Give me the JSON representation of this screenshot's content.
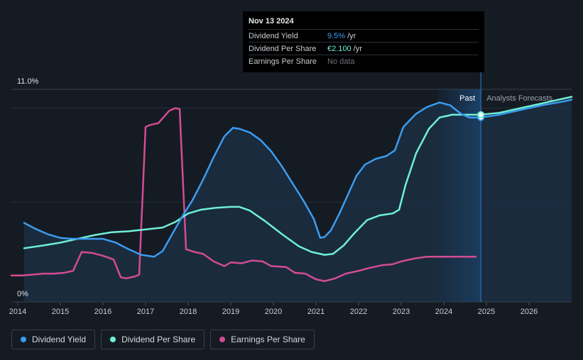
{
  "tooltip": {
    "date": "Nov 13 2024",
    "rows": [
      {
        "label": "Dividend Yield",
        "value": "9.5%",
        "unit": "/yr",
        "color": "#3b9cf0"
      },
      {
        "label": "Dividend Per Share",
        "value": "€2.100",
        "unit": "/yr",
        "color": "#6ff0d8"
      },
      {
        "label": "Earnings Per Share",
        "value": "No data",
        "unit": "",
        "color": "#6e737a"
      }
    ]
  },
  "regions": {
    "past": "Past",
    "forecast": "Analysts Forecasts"
  },
  "legend": [
    {
      "label": "Dividend Yield",
      "color": "#3b9cf0"
    },
    {
      "label": "Dividend Per Share",
      "color": "#6ff0d8"
    },
    {
      "label": "Earnings Per Share",
      "color": "#d34c93"
    }
  ],
  "chart_data": {
    "type": "line",
    "title": "",
    "xlabel": "",
    "ylabel": "",
    "ylim": [
      0,
      11.0
    ],
    "y_tick_labels": [
      "11.0%",
      "0%"
    ],
    "xlim": [
      2013.85,
      2027.0
    ],
    "x_ticks": [
      "2014",
      "2015",
      "2016",
      "2017",
      "2018",
      "2019",
      "2020",
      "2021",
      "2022",
      "2023",
      "2024",
      "2025",
      "2026"
    ],
    "current_date": 2024.87,
    "series": [
      {
        "name": "Dividend Yield",
        "unit": "%",
        "color": "#3b9cf0",
        "x": [
          2014.15,
          2014.4,
          2014.7,
          2015.0,
          2015.3,
          2015.7,
          2016.0,
          2016.3,
          2016.6,
          2016.9,
          2017.2,
          2017.4,
          2017.6,
          2017.85,
          2018.1,
          2018.35,
          2018.6,
          2018.85,
          2019.05,
          2019.2,
          2019.45,
          2019.7,
          2019.95,
          2020.2,
          2020.45,
          2020.7,
          2020.95,
          2021.1,
          2021.2,
          2021.35,
          2021.55,
          2021.75,
          2021.95,
          2022.15,
          2022.4,
          2022.65,
          2022.85,
          2023.05,
          2023.35,
          2023.6,
          2023.9,
          2024.15,
          2024.4,
          2024.6,
          2024.87,
          2025.3,
          2025.8,
          2026.3,
          2026.8,
          2027.0
        ],
        "values": [
          3.9,
          3.6,
          3.3,
          3.1,
          3.05,
          3.05,
          3.05,
          2.85,
          2.5,
          2.2,
          2.1,
          2.4,
          3.2,
          4.2,
          5.1,
          6.2,
          7.4,
          8.5,
          8.95,
          8.9,
          8.7,
          8.3,
          7.7,
          6.9,
          6.0,
          5.1,
          4.1,
          3.1,
          3.15,
          3.5,
          4.4,
          5.4,
          6.4,
          7.0,
          7.3,
          7.45,
          7.75,
          9.0,
          9.7,
          10.05,
          10.3,
          10.15,
          9.7,
          9.5,
          9.5,
          9.65,
          9.9,
          10.15,
          10.35,
          10.45
        ]
      },
      {
        "name": "Dividend Per Share",
        "unit": "€",
        "color": "#6ff0d8",
        "x": [
          2014.15,
          2014.6,
          2015.0,
          2015.4,
          2015.8,
          2016.2,
          2016.6,
          2017.0,
          2017.4,
          2017.7,
          2018.0,
          2018.3,
          2018.65,
          2019.0,
          2019.2,
          2019.45,
          2019.8,
          2020.2,
          2020.6,
          2020.9,
          2021.2,
          2021.4,
          2021.65,
          2021.9,
          2022.2,
          2022.5,
          2022.8,
          2022.95,
          2023.1,
          2023.35,
          2023.65,
          2023.9,
          2024.2,
          2024.55,
          2024.87,
          2025.3,
          2025.8,
          2026.3,
          2026.8,
          2027.0
        ],
        "values": [
          2.55,
          2.7,
          2.85,
          3.05,
          3.25,
          3.4,
          3.45,
          3.55,
          3.65,
          3.95,
          4.4,
          4.6,
          4.7,
          4.75,
          4.75,
          4.55,
          4.0,
          3.3,
          2.65,
          2.35,
          2.2,
          2.25,
          2.7,
          3.35,
          4.05,
          4.3,
          4.4,
          4.6,
          5.9,
          7.6,
          8.9,
          9.5,
          9.65,
          9.65,
          9.65,
          9.75,
          10.0,
          10.25,
          10.5,
          10.6
        ]
      },
      {
        "name": "Earnings Per Share",
        "unit": "",
        "color": "#d34c93",
        "x": [
          2013.85,
          2014.1,
          2014.35,
          2014.6,
          2014.85,
          2015.1,
          2015.3,
          2015.5,
          2015.75,
          2016.0,
          2016.25,
          2016.42,
          2016.55,
          2016.75,
          2016.85,
          2017.0,
          2017.1,
          2017.3,
          2017.55,
          2017.7,
          2017.8,
          2017.95,
          2018.15,
          2018.35,
          2018.6,
          2018.85,
          2019.0,
          2019.25,
          2019.5,
          2019.75,
          2019.95,
          2020.3,
          2020.5,
          2020.75,
          2021.0,
          2021.2,
          2021.45,
          2021.7,
          2022.0,
          2022.25,
          2022.55,
          2022.8,
          2023.0,
          2023.3,
          2023.6,
          2024.0,
          2024.4,
          2024.75
        ],
        "values": [
          1.1,
          1.1,
          1.15,
          1.2,
          1.2,
          1.25,
          1.35,
          2.35,
          2.3,
          2.15,
          1.95,
          1.0,
          0.95,
          1.05,
          1.15,
          9.0,
          9.1,
          9.2,
          9.85,
          10.0,
          9.95,
          2.5,
          2.35,
          2.25,
          1.85,
          1.6,
          1.8,
          1.75,
          1.9,
          1.85,
          1.6,
          1.55,
          1.25,
          1.2,
          0.9,
          0.8,
          0.95,
          1.2,
          1.35,
          1.5,
          1.65,
          1.7,
          1.85,
          2.0,
          2.1,
          2.1,
          2.1,
          2.1
        ]
      }
    ]
  }
}
